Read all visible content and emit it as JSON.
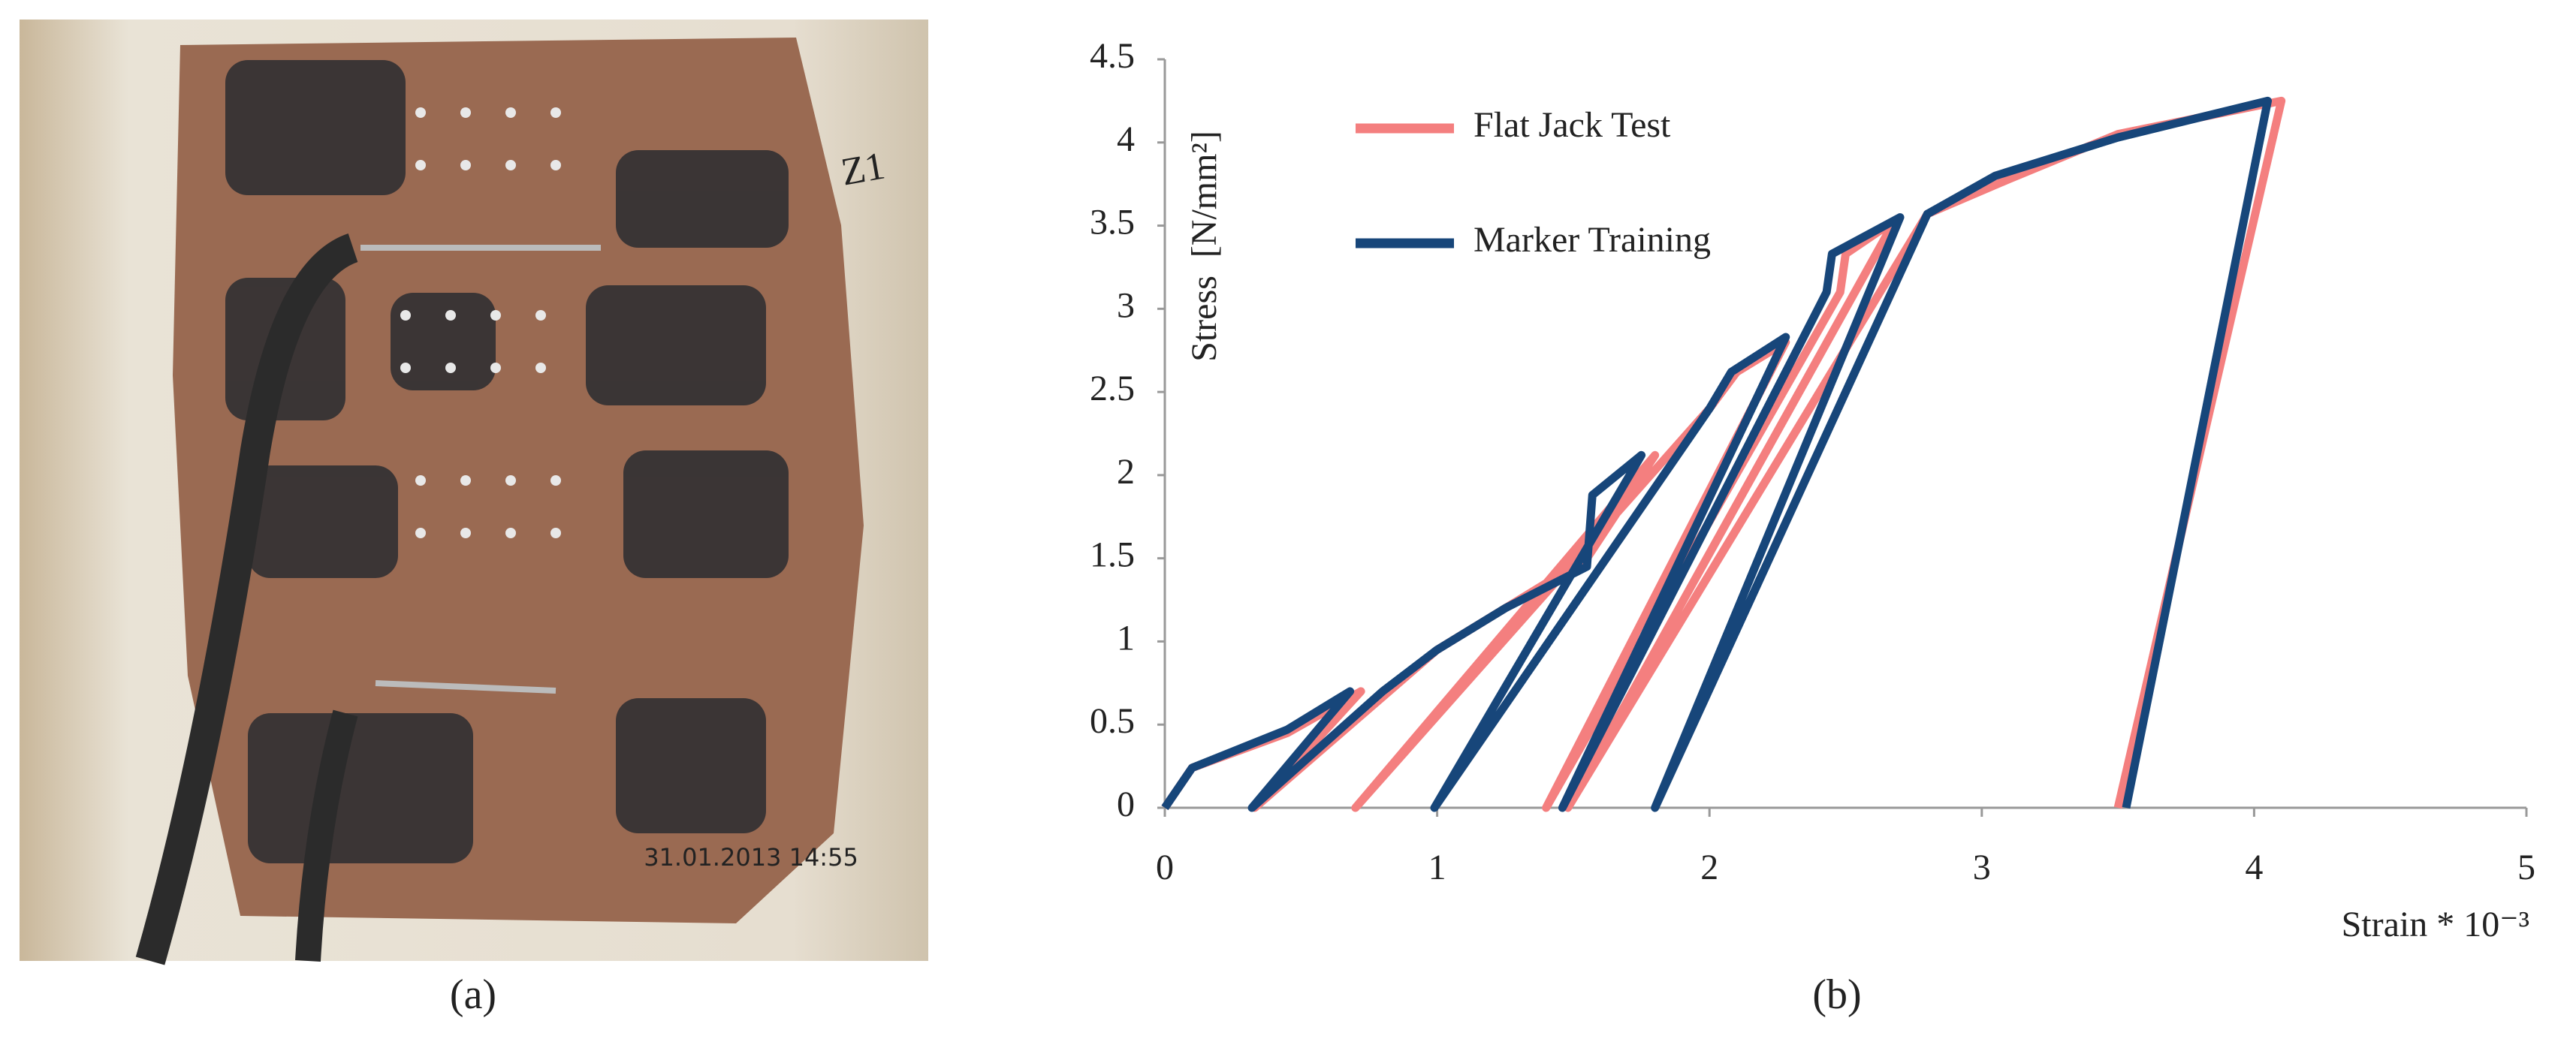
{
  "photo": {
    "timestamp": "31.01.2013 14:55",
    "mark": "Z1",
    "caption": "(a)"
  },
  "chart_data": {
    "type": "line",
    "caption": "(b)",
    "ylabel": "Stress  [N/mm²]",
    "xlabel": "Strain * 10⁻³",
    "xlim": [
      0,
      5
    ],
    "xticks": [
      0,
      1,
      2,
      3,
      4,
      5
    ],
    "ylim": [
      0,
      4.5
    ],
    "yticks": [
      0,
      0.5,
      1,
      1.5,
      2,
      2.5,
      3,
      3.5,
      4,
      4.5
    ],
    "legend": "top-left",
    "grid": false,
    "series": [
      {
        "name": "Flat Jack Test",
        "color": "#f47f7f",
        "x": [
          0,
          0.1,
          0.45,
          0.72,
          0.33,
          1.0,
          1.3,
          1.55,
          1.8,
          0.7,
          2.0,
          2.1,
          2.28,
          1.4,
          2.48,
          2.5,
          2.68,
          1.48,
          2.8,
          3.1,
          3.5,
          4.1,
          3.5
        ],
        "values": [
          0,
          0.24,
          0.45,
          0.7,
          0,
          0.95,
          1.25,
          1.5,
          2.12,
          0,
          2.4,
          2.62,
          2.8,
          0,
          3.1,
          3.33,
          3.53,
          0,
          3.57,
          3.78,
          4.05,
          4.25,
          0
        ]
      },
      {
        "name": "Marker Training",
        "color": "#17467a",
        "x": [
          0,
          0.1,
          0.45,
          0.68,
          0.32,
          0.8,
          1.0,
          1.25,
          1.55,
          1.57,
          1.75,
          0.99,
          2.0,
          2.08,
          2.28,
          1.46,
          2.43,
          2.45,
          2.7,
          1.8,
          2.8,
          3.05,
          3.5,
          4.05,
          3.53
        ],
        "values": [
          0,
          0.24,
          0.47,
          0.7,
          0,
          0.7,
          0.95,
          1.2,
          1.45,
          1.88,
          2.12,
          0,
          2.4,
          2.62,
          2.83,
          0,
          3.1,
          3.33,
          3.55,
          0,
          3.57,
          3.8,
          4.03,
          4.25,
          0
        ]
      }
    ]
  }
}
